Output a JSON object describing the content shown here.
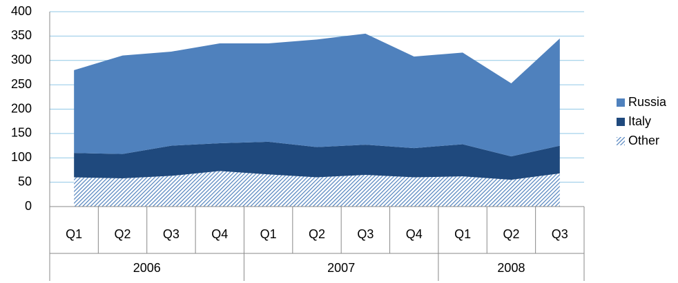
{
  "chart_data": {
    "type": "stacked_area",
    "categories": [
      {
        "label": "Q1",
        "group": "2006"
      },
      {
        "label": "Q2",
        "group": "2006"
      },
      {
        "label": "Q3",
        "group": "2006"
      },
      {
        "label": "Q4",
        "group": "2006"
      },
      {
        "label": "Q1",
        "group": "2007"
      },
      {
        "label": "Q2",
        "group": "2007"
      },
      {
        "label": "Q3",
        "group": "2007"
      },
      {
        "label": "Q4",
        "group": "2007"
      },
      {
        "label": "Q1",
        "group": "2008"
      },
      {
        "label": "Q2",
        "group": "2008"
      },
      {
        "label": "Q3",
        "group": "2008"
      }
    ],
    "groups": [
      "2006",
      "2007",
      "2008"
    ],
    "series": [
      {
        "name": "Other",
        "color": "#4f81bd",
        "hatch": true,
        "values": [
          60,
          58,
          63,
          73,
          66,
          60,
          65,
          60,
          62,
          55,
          68
        ]
      },
      {
        "name": "Italy",
        "color": "#1f497d",
        "values": [
          50,
          50,
          62,
          57,
          67,
          62,
          62,
          60,
          66,
          48,
          57
        ]
      },
      {
        "name": "Russia",
        "color": "#4f81bd",
        "values": [
          170,
          202,
          193,
          205,
          202,
          221,
          228,
          188,
          188,
          150,
          220
        ]
      }
    ],
    "ylim": [
      0,
      400
    ],
    "yticks": [
      0,
      50,
      100,
      150,
      200,
      250,
      300,
      350,
      400
    ],
    "grid": true,
    "legend": "right"
  }
}
